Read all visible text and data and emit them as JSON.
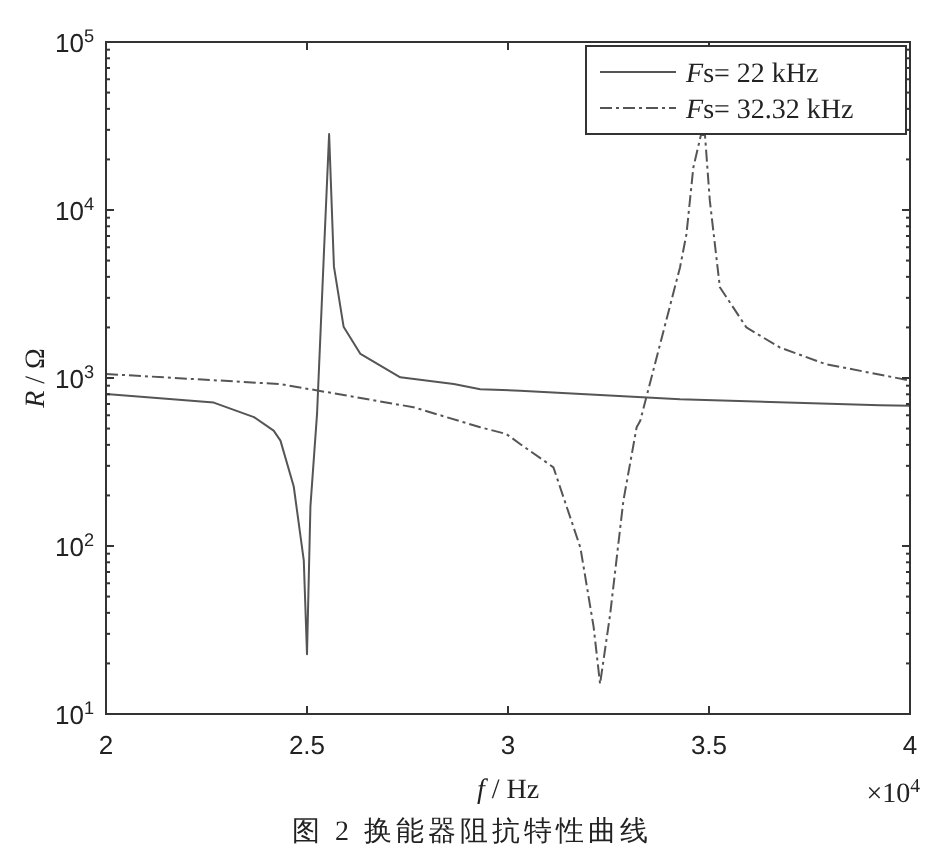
{
  "chart_data": {
    "type": "line",
    "title": "图 2  换能器阻抗特性曲线",
    "xlabel": "f / Hz",
    "ylabel": "R / Ω",
    "annotations": [
      "×10$^{4}$"
    ],
    "log": "y",
    "grid": false,
    "legend": "top right",
    "marker": "none",
    "xlim": [
      2,
      4
    ],
    "xticks": [
      2,
      2.5,
      3,
      3.5,
      4
    ],
    "ylim": [
      10,
      100000
    ],
    "yticks": [
      {
        "value": 10,
        "label": "10$^{1}$"
      },
      {
        "value": 100,
        "label": "10$^{2}$"
      },
      {
        "value": 1000,
        "label": "10$^{3}$"
      },
      {
        "value": 10000,
        "label": "10$^{4}$"
      },
      {
        "value": 100000,
        "label": "10$^{5}$"
      }
    ],
    "series": [
      {
        "name": "Fs= 22 kHz",
        "color": "#555555",
        "line_style": "solid",
        "x": [
          2,
          2.268,
          2.368,
          2.417,
          2.434,
          2.467,
          2.492,
          2.5,
          2.5085,
          2.525,
          2.542,
          2.555,
          2.567,
          2.591,
          2.633,
          2.732,
          2.865,
          2.931,
          3.03,
          3.428,
          3.925,
          4
        ],
        "values": [
          804,
          714,
          585,
          486,
          424,
          226,
          82,
          22.7,
          172,
          611,
          5470,
          28300,
          4600,
          2020,
          1390,
          1010,
          920,
          858,
          841,
          748,
          689,
          683
        ]
      },
      {
        "name": "Fs= 32.32 kHz",
        "color": "#555555",
        "line_style": "dashdot",
        "x": [
          2,
          2.434,
          2.765,
          2.931,
          2.996,
          3.03,
          3.113,
          3.18,
          3.213,
          3.229,
          3.254,
          3.287,
          3.32,
          3.329,
          3.428,
          3.444,
          3.461,
          3.48,
          3.49,
          3.502,
          3.527,
          3.593,
          3.676,
          3.79,
          4
        ],
        "values": [
          1057,
          920,
          670,
          509,
          464,
          405,
          294,
          98,
          33,
          15.1,
          39,
          186,
          509,
          557,
          4570,
          7200,
          17900,
          28000,
          28000,
          11400,
          3470,
          2000,
          1520,
          1210,
          966
        ]
      }
    ]
  }
}
